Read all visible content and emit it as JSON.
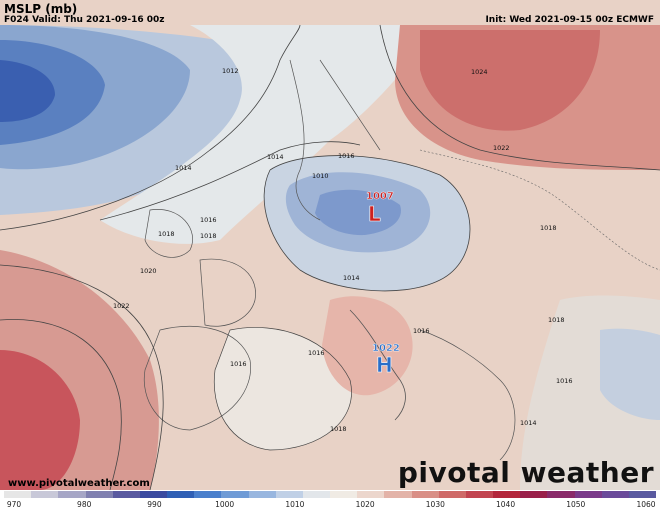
{
  "header": {
    "title": "MSLP (mb)",
    "valid": "F024 Valid: Thu 2021-09-16 00z",
    "init": "Init: Wed 2021-09-15 00z ECMWF"
  },
  "footer": {
    "website": "www.pivotalweather.com",
    "brand": "pivotal weather"
  },
  "centers": [
    {
      "type": "L",
      "value": "1007",
      "color": "#cc1f1f"
    },
    {
      "type": "H",
      "value": "1022",
      "color": "#2a6fc9"
    }
  ],
  "isobar_labels": [
    "1012",
    "1014",
    "1016",
    "1010",
    "1014",
    "1018",
    "1020",
    "1022",
    "1016",
    "1018",
    "1016",
    "1016",
    "1014",
    "1016",
    "1018",
    "1018",
    "1018",
    "1016",
    "1014",
    "1024",
    "1022"
  ],
  "colorbar": {
    "ticks": [
      "970",
      "980",
      "990",
      "1000",
      "1010",
      "1020",
      "1030",
      "1040",
      "1050",
      "1060"
    ],
    "colors": [
      "#e6e6e6",
      "#c8c8d8",
      "#a6a6c6",
      "#8080b0",
      "#5a5aa0",
      "#3a4aa0",
      "#2f5fb5",
      "#4a7fcc",
      "#6f9bd6",
      "#98b6df",
      "#c0d0e6",
      "#e2e6ea",
      "#f0ebe4",
      "#ecd6cc",
      "#e3b3a8",
      "#d98f86",
      "#cf6a68",
      "#c24450",
      "#b3263b",
      "#9a1f4a",
      "#8a2a6a",
      "#7a3a8a",
      "#6a4a9a",
      "#5a5aa0"
    ]
  }
}
